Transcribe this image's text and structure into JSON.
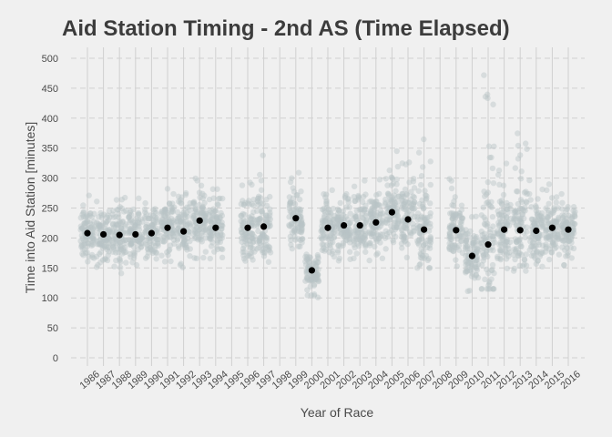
{
  "chart_data": {
    "type": "scatter",
    "title": "Aid Station Timing - 2nd AS (Time Elapsed)",
    "xlabel": "Year of Race",
    "ylabel": "Time into Aid Station [minutes]",
    "x_categories": [
      "1986",
      "1987",
      "1988",
      "1989",
      "1990",
      "1991",
      "1992",
      "1993",
      "1994",
      "1995",
      "1996",
      "1997",
      "1998",
      "1999",
      "2000",
      "2001",
      "2002",
      "2003",
      "2004",
      "2005",
      "2006",
      "2007",
      "2008",
      "2009",
      "2010",
      "2011",
      "2012",
      "2013",
      "2014",
      "2015",
      "2016"
    ],
    "ylim": [
      0,
      500
    ],
    "yticks": [
      0,
      50,
      100,
      150,
      200,
      250,
      300,
      350,
      400,
      450,
      500
    ],
    "grid": true,
    "legend": "none",
    "colors": {
      "points": "#b8c4c6",
      "means": "#000000",
      "grid": "#d0d0d0",
      "background": "#f0f0f0"
    },
    "mean_points": [
      {
        "x": "1986",
        "y": 208
      },
      {
        "x": "1987",
        "y": 206
      },
      {
        "x": "1988",
        "y": 205
      },
      {
        "x": "1989",
        "y": 206
      },
      {
        "x": "1990",
        "y": 208
      },
      {
        "x": "1991",
        "y": 217
      },
      {
        "x": "1992",
        "y": 211
      },
      {
        "x": "1993",
        "y": 229
      },
      {
        "x": "1994",
        "y": 217
      },
      {
        "x": "1996",
        "y": 217
      },
      {
        "x": "1997",
        "y": 219
      },
      {
        "x": "1999",
        "y": 233
      },
      {
        "x": "2000",
        "y": 146
      },
      {
        "x": "2001",
        "y": 217
      },
      {
        "x": "2002",
        "y": 221
      },
      {
        "x": "2003",
        "y": 221
      },
      {
        "x": "2004",
        "y": 226
      },
      {
        "x": "2005",
        "y": 243
      },
      {
        "x": "2006",
        "y": 231
      },
      {
        "x": "2007",
        "y": 214
      },
      {
        "x": "2009",
        "y": 213
      },
      {
        "x": "2010",
        "y": 170
      },
      {
        "x": "2011",
        "y": 189
      },
      {
        "x": "2012",
        "y": 214
      },
      {
        "x": "2013",
        "y": 213
      },
      {
        "x": "2014",
        "y": 212
      },
      {
        "x": "2015",
        "y": 217
      },
      {
        "x": "2016",
        "y": 214
      }
    ],
    "point_spread": [
      {
        "x": "1986",
        "low": 150,
        "high": 280
      },
      {
        "x": "1987",
        "low": 150,
        "high": 270
      },
      {
        "x": "1988",
        "low": 140,
        "high": 275
      },
      {
        "x": "1989",
        "low": 150,
        "high": 270
      },
      {
        "x": "1990",
        "low": 155,
        "high": 275
      },
      {
        "x": "1991",
        "low": 160,
        "high": 285
      },
      {
        "x": "1992",
        "low": 150,
        "high": 280
      },
      {
        "x": "1993",
        "low": 160,
        "high": 300
      },
      {
        "x": "1994",
        "low": 160,
        "high": 290
      },
      {
        "x": "1996",
        "low": 155,
        "high": 300
      },
      {
        "x": "1997",
        "low": 150,
        "high": 340
      },
      {
        "x": "1999",
        "low": 180,
        "high": 315
      },
      {
        "x": "2000",
        "low": 100,
        "high": 180
      },
      {
        "x": "2001",
        "low": 160,
        "high": 290
      },
      {
        "x": "2002",
        "low": 160,
        "high": 290
      },
      {
        "x": "2003",
        "low": 160,
        "high": 300
      },
      {
        "x": "2004",
        "low": 160,
        "high": 310
      },
      {
        "x": "2005",
        "low": 165,
        "high": 355
      },
      {
        "x": "2006",
        "low": 160,
        "high": 330
      },
      {
        "x": "2007",
        "low": 150,
        "high": 365
      },
      {
        "x": "2009",
        "low": 150,
        "high": 300
      },
      {
        "x": "2010",
        "low": 110,
        "high": 240
      },
      {
        "x": "2011",
        "low": 115,
        "high": 480
      },
      {
        "x": "2012",
        "low": 145,
        "high": 340
      },
      {
        "x": "2013",
        "low": 145,
        "high": 390
      },
      {
        "x": "2014",
        "low": 145,
        "high": 300
      },
      {
        "x": "2015",
        "low": 145,
        "high": 300
      },
      {
        "x": "2016",
        "low": 150,
        "high": 290
      }
    ]
  }
}
